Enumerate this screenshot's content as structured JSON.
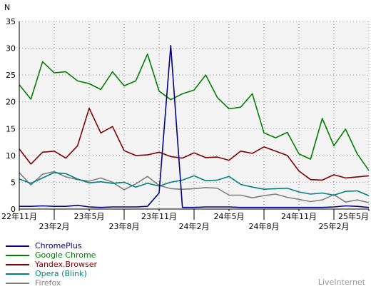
{
  "source_label": "LiveInternet",
  "chart_data": {
    "type": "line",
    "ylabel": "N",
    "ylim": [
      0,
      35
    ],
    "yticks": [
      0,
      5,
      10,
      15,
      20,
      25,
      30,
      35
    ],
    "x_tick_labels": [
      {
        "label": "22年11月",
        "i": 0,
        "row": 0
      },
      {
        "label": "23年2月",
        "i": 3,
        "row": 1
      },
      {
        "label": "23年5月",
        "i": 6,
        "row": 0
      },
      {
        "label": "23年8月",
        "i": 9,
        "row": 1
      },
      {
        "label": "23年11月",
        "i": 12,
        "row": 0
      },
      {
        "label": "24年2月",
        "i": 15,
        "row": 1
      },
      {
        "label": "24年5月",
        "i": 18,
        "row": 0
      },
      {
        "label": "24年8月",
        "i": 21,
        "row": 1
      },
      {
        "label": "24年11月",
        "i": 24,
        "row": 0
      },
      {
        "label": "25年2月",
        "i": 27,
        "row": 1
      },
      {
        "label": "25年5月",
        "i": 30,
        "row": 0
      }
    ],
    "n_points": 31,
    "series": [
      {
        "name": "ChromePlus",
        "color": "#000080",
        "values": [
          0.5,
          0.5,
          0.6,
          0.5,
          0.5,
          0.7,
          0.4,
          0.3,
          0.4,
          0.4,
          0.4,
          0.5,
          3.0,
          30.5,
          0.3,
          0.3,
          0.4,
          0.4,
          0.4,
          0.3,
          0.3,
          0.3,
          0.3,
          0.3,
          0.3,
          0.3,
          0.3,
          0.4,
          0.6,
          0.5,
          0.3
        ]
      },
      {
        "name": "Google Chrome",
        "color": "#008000",
        "values": [
          23.2,
          20.5,
          27.5,
          25.4,
          25.6,
          23.9,
          23.4,
          22.3,
          25.6,
          23.0,
          23.9,
          28.9,
          22.0,
          20.4,
          21.5,
          22.2,
          25.0,
          20.8,
          18.7,
          19.0,
          21.5,
          14.2,
          13.3,
          14.3,
          10.3,
          9.3,
          16.9,
          11.8,
          14.9,
          10.3,
          7.2
        ]
      },
      {
        "name": "Yandex.Browser",
        "color": "#800000",
        "values": [
          11.2,
          8.4,
          10.6,
          10.8,
          9.5,
          11.8,
          18.8,
          14.2,
          15.4,
          10.9,
          10.0,
          10.1,
          10.6,
          9.8,
          9.5,
          10.5,
          9.6,
          9.7,
          9.1,
          10.8,
          10.4,
          11.6,
          10.8,
          10.0,
          7.1,
          5.5,
          5.4,
          6.4,
          5.8,
          6.0,
          6.2
        ]
      },
      {
        "name": "Opera (Blink)",
        "color": "#008080",
        "values": [
          5.6,
          4.8,
          5.8,
          6.8,
          6.6,
          5.6,
          4.9,
          5.1,
          4.8,
          5.0,
          4.1,
          4.8,
          4.3,
          5.0,
          5.4,
          6.2,
          5.3,
          5.4,
          6.1,
          4.6,
          4.1,
          3.7,
          3.8,
          3.9,
          3.2,
          2.8,
          3.0,
          2.6,
          3.3,
          3.4,
          2.5
        ]
      },
      {
        "name": "Firefox",
        "color": "#808080",
        "values": [
          6.8,
          4.5,
          6.5,
          7.0,
          6.0,
          5.5,
          5.2,
          5.8,
          5.0,
          3.6,
          4.7,
          6.1,
          4.4,
          3.8,
          3.7,
          3.8,
          4.0,
          3.9,
          2.6,
          2.6,
          2.1,
          2.5,
          2.8,
          2.2,
          1.8,
          1.4,
          1.7,
          2.7,
          1.3,
          1.7,
          1.2
        ]
      }
    ]
  }
}
